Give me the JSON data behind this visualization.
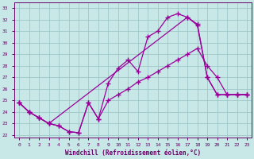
{
  "xlabel": "Windchill (Refroidissement éolien,°C)",
  "bg_color": "#c8e8e8",
  "line_color": "#990099",
  "grid_color": "#a0c8c8",
  "xlim": [
    -0.5,
    23.5
  ],
  "ylim": [
    21.8,
    33.5
  ],
  "xticks": [
    0,
    1,
    2,
    3,
    4,
    5,
    6,
    7,
    8,
    9,
    10,
    11,
    12,
    13,
    14,
    15,
    16,
    17,
    18,
    19,
    20,
    21,
    22,
    23
  ],
  "yticks": [
    22,
    23,
    24,
    25,
    26,
    27,
    28,
    29,
    30,
    31,
    32,
    33
  ],
  "line1_x": [
    0,
    1,
    2,
    3,
    4,
    5,
    6,
    7,
    8,
    9,
    10,
    11,
    12,
    13,
    14,
    15,
    16,
    17,
    18,
    19,
    20,
    21,
    22,
    23
  ],
  "line1_y": [
    24.8,
    24.0,
    23.5,
    23.0,
    22.8,
    22.3,
    22.2,
    24.8,
    23.4,
    25.0,
    25.5,
    26.0,
    26.6,
    27.0,
    27.5,
    28.0,
    28.5,
    29.0,
    29.5,
    28.0,
    27.0,
    25.5,
    25.5,
    25.5
  ],
  "line2_x": [
    0,
    1,
    2,
    3,
    4,
    5,
    6,
    7,
    8,
    9,
    10,
    11,
    12,
    13,
    14,
    15,
    16,
    17,
    18,
    19,
    20,
    21,
    22,
    23
  ],
  "line2_y": [
    24.8,
    24.0,
    23.5,
    23.0,
    22.8,
    22.3,
    22.2,
    24.8,
    23.4,
    26.5,
    27.8,
    28.5,
    27.5,
    30.5,
    31.0,
    32.2,
    32.5,
    32.2,
    31.5,
    27.0,
    25.5,
    25.5,
    25.5,
    25.5
  ],
  "line3_x": [
    0,
    1,
    2,
    3,
    17,
    18,
    19,
    20,
    21,
    22,
    23
  ],
  "line3_y": [
    24.8,
    24.0,
    23.5,
    23.0,
    32.2,
    31.6,
    27.0,
    25.5,
    25.5,
    25.5,
    25.5
  ]
}
